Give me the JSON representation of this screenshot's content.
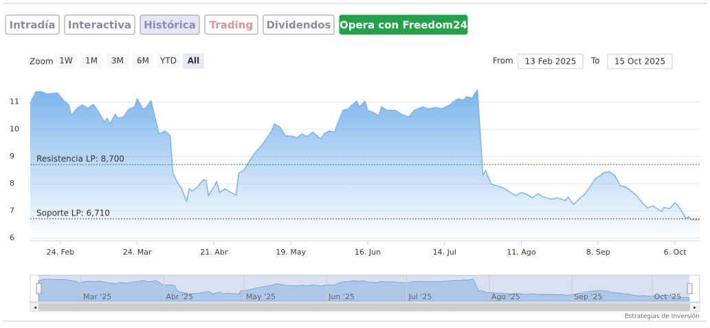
{
  "tabs": [
    {
      "label": "Intradía",
      "color": "#8a8aa0"
    },
    {
      "label": "Interactiva",
      "color": "#8a8aa0"
    },
    {
      "label": "Histórica",
      "color": "#8a8ab8",
      "active": true
    },
    {
      "label": "Trading",
      "color": "#e0928c"
    },
    {
      "label": "Dividendos",
      "color": "#8a8aa0"
    },
    {
      "label": "Opera con Freedom24",
      "color": "#ffffff",
      "fill": "#22a34a"
    }
  ],
  "zoom": {
    "label": "Zoom",
    "buttons": [
      "1W",
      "1M",
      "3M",
      "6M",
      "YTD",
      "All"
    ],
    "active": 5
  },
  "range": {
    "from_label": "From",
    "from": "13 Feb 2025",
    "to_label": "To",
    "to": "15 Oct 2025"
  },
  "credit": "Estrategias de Inversión",
  "chart_data": {
    "type": "area",
    "color": "#7cb5ec",
    "x": [
      "2025-02-13",
      "2025-02-15",
      "2025-02-17",
      "2025-02-19",
      "2025-02-23",
      "2025-02-25",
      "2025-02-27",
      "2025-02-28",
      "2025-03-02",
      "2025-03-04",
      "2025-03-06",
      "2025-03-08",
      "2025-03-10",
      "2025-03-12",
      "2025-03-13",
      "2025-03-14",
      "2025-03-16",
      "2025-03-17",
      "2025-03-19",
      "2025-03-21",
      "2025-03-23",
      "2025-03-24",
      "2025-03-26",
      "2025-03-27",
      "2025-03-29",
      "2025-04-01",
      "2025-04-03",
      "2025-04-05",
      "2025-04-06",
      "2025-04-08",
      "2025-04-09",
      "2025-04-11",
      "2025-04-12",
      "2025-04-13",
      "2025-04-15",
      "2025-04-17",
      "2025-04-18",
      "2025-04-19",
      "2025-04-20",
      "2025-04-22",
      "2025-04-23",
      "2025-04-25",
      "2025-04-27",
      "2025-04-29",
      "2025-04-30",
      "2025-05-02",
      "2025-05-04",
      "2025-05-06",
      "2025-05-08",
      "2025-05-10",
      "2025-05-12",
      "2025-05-13",
      "2025-05-15",
      "2025-05-17",
      "2025-05-20",
      "2025-05-21",
      "2025-05-23",
      "2025-05-25",
      "2025-05-27",
      "2025-05-30",
      "2025-05-31",
      "2025-06-02",
      "2025-06-04",
      "2025-06-05",
      "2025-06-07",
      "2025-06-09",
      "2025-06-10",
      "2025-06-12",
      "2025-06-13",
      "2025-06-15",
      "2025-06-16",
      "2025-06-18",
      "2025-06-20",
      "2025-06-21",
      "2025-06-23",
      "2025-06-26",
      "2025-06-28",
      "2025-07-01",
      "2025-07-03",
      "2025-07-06",
      "2025-07-08",
      "2025-07-11",
      "2025-07-13",
      "2025-07-16",
      "2025-07-17",
      "2025-07-19",
      "2025-07-21",
      "2025-07-22",
      "2025-07-24",
      "2025-07-26",
      "2025-07-28",
      "2025-07-29",
      "2025-07-31",
      "2025-08-02",
      "2025-08-05",
      "2025-08-07",
      "2025-08-09",
      "2025-08-11",
      "2025-08-13",
      "2025-08-15",
      "2025-08-17",
      "2025-08-19",
      "2025-08-22",
      "2025-08-24",
      "2025-08-27",
      "2025-08-28",
      "2025-08-30",
      "2025-09-01",
      "2025-09-03",
      "2025-09-05",
      "2025-09-07",
      "2025-09-09",
      "2025-09-10",
      "2025-09-12",
      "2025-09-14",
      "2025-09-16",
      "2025-09-18",
      "2025-09-20",
      "2025-09-22",
      "2025-09-24",
      "2025-09-26",
      "2025-09-28",
      "2025-10-01",
      "2025-10-02",
      "2025-10-04",
      "2025-10-06",
      "2025-10-08",
      "2025-10-10",
      "2025-10-11",
      "2025-10-12",
      "2025-10-15"
    ],
    "values": [
      10.95,
      11.38,
      11.38,
      11.3,
      11.33,
      11.08,
      10.9,
      10.5,
      10.77,
      10.9,
      10.77,
      10.92,
      10.62,
      10.27,
      10.4,
      10.2,
      10.55,
      10.4,
      10.45,
      10.75,
      10.82,
      11.12,
      10.75,
      10.77,
      11.05,
      9.82,
      9.94,
      9.77,
      8.39,
      7.98,
      7.86,
      7.36,
      7.81,
      7.73,
      7.88,
      8.14,
      8.14,
      7.56,
      7.73,
      8.08,
      7.68,
      7.81,
      7.68,
      7.58,
      8.39,
      8.51,
      8.86,
      9.14,
      9.37,
      9.64,
      9.94,
      10.2,
      10.07,
      9.77,
      9.74,
      9.69,
      9.82,
      9.74,
      9.9,
      9.64,
      9.82,
      9.94,
      9.9,
      10.2,
      10.7,
      10.75,
      10.87,
      11.03,
      10.82,
      11.03,
      10.7,
      10.62,
      10.5,
      10.82,
      10.7,
      10.7,
      10.57,
      10.45,
      10.7,
      10.82,
      10.75,
      10.8,
      10.75,
      10.9,
      11.0,
      11.12,
      11.07,
      11.2,
      11.15,
      11.45,
      8.31,
      8.49,
      7.98,
      7.93,
      7.81,
      7.68,
      7.56,
      7.68,
      7.61,
      7.48,
      7.63,
      7.51,
      7.43,
      7.48,
      7.38,
      7.51,
      7.23,
      7.43,
      7.61,
      7.88,
      8.19,
      8.31,
      8.41,
      8.44,
      8.31,
      7.93,
      7.88,
      7.73,
      7.56,
      7.31,
      7.11,
      7.18,
      6.98,
      7.13,
      7.08,
      7.31,
      7.06,
      6.73,
      6.78,
      6.68,
      6.68
    ],
    "xlim": [
      "2025-02-13",
      "2025-10-15"
    ],
    "xticks": [
      {
        "value": "2025-02-24",
        "label": "24. Feb"
      },
      {
        "value": "2025-03-24",
        "label": "24. Mar"
      },
      {
        "value": "2025-04-21",
        "label": "21. Abr"
      },
      {
        "value": "2025-05-19",
        "label": "19. May"
      },
      {
        "value": "2025-06-16",
        "label": "16. Jun"
      },
      {
        "value": "2025-07-14",
        "label": "14. Jul"
      },
      {
        "value": "2025-08-11",
        "label": "11. Ago"
      },
      {
        "value": "2025-09-08",
        "label": "8. Sep"
      },
      {
        "value": "2025-10-06",
        "label": "6. Oct"
      }
    ],
    "ylim": [
      5.9,
      11.9
    ],
    "yticks": [
      6,
      7,
      8,
      9,
      10,
      11
    ],
    "grid": true,
    "annotations": [
      {
        "text": "Resistencia LP: 8,700",
        "value": 8.7,
        "color": "#2a8a2a"
      },
      {
        "text": "Soporte LP: 6,710",
        "value": 6.71,
        "color": "#8a2a3a"
      }
    ],
    "navigator_ticks": [
      {
        "value": "2025-03-01",
        "label": "Mar '25"
      },
      {
        "value": "2025-04-01",
        "label": "Abr '25"
      },
      {
        "value": "2025-05-01",
        "label": "May '25"
      },
      {
        "value": "2025-06-01",
        "label": "Jun '25"
      },
      {
        "value": "2025-07-01",
        "label": "Jul '25"
      },
      {
        "value": "2025-08-01",
        "label": "Ago '25"
      },
      {
        "value": "2025-09-01",
        "label": "Sep '25"
      },
      {
        "value": "2025-10-01",
        "label": "Oct '25"
      }
    ]
  }
}
